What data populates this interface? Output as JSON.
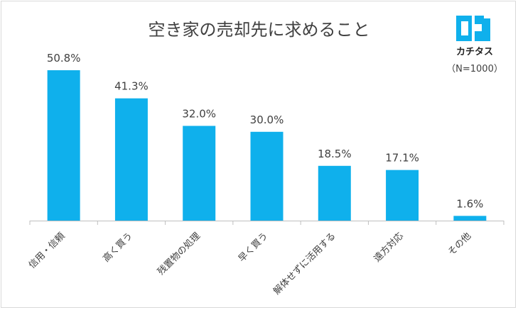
{
  "chart_data": {
    "type": "bar",
    "title": "空き家の売却先に求めること",
    "categories": [
      "信用・信頼",
      "高く買う",
      "残置物の処理",
      "早く買う",
      "解体せずに活用する",
      "遠方対応",
      "その他"
    ],
    "values": [
      50.8,
      41.3,
      32.0,
      30.0,
      18.5,
      17.1,
      1.6
    ],
    "value_labels": [
      "50.8%",
      "41.3%",
      "32.0%",
      "30.0%",
      "18.5%",
      "17.1%",
      "1.6%"
    ],
    "ylim": [
      0,
      50.8
    ],
    "bar_color": "#0fb0ec",
    "axis_color": "#bfbfbf",
    "grid": false,
    "legend": "none"
  },
  "brand": {
    "name": "カチタス",
    "sample_size": "（N=1000）",
    "logo_color": "#0fb0ec",
    "logo_icon": "katitas-logo-icon"
  }
}
